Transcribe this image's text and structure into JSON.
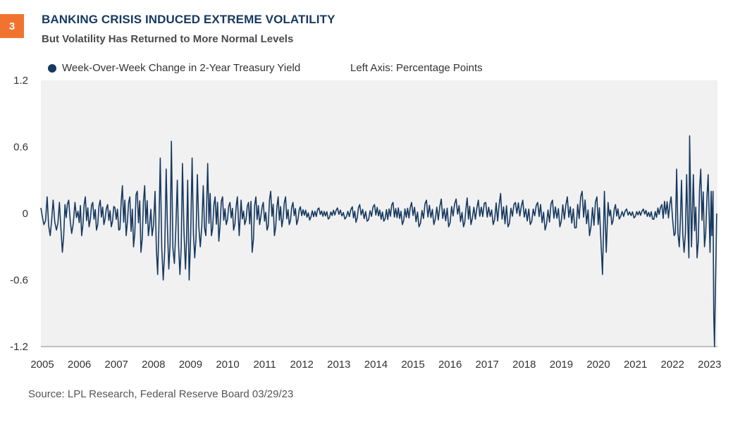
{
  "figure": {
    "number": "3",
    "title": "BANKING CRISIS INDUCED EXTREME VOLATILITY",
    "subtitle": "But Volatility Has Returned to More Normal Levels",
    "source": "Source: LPL Research, Federal Reserve Board  03/29/23"
  },
  "colors": {
    "accent": "#f0742f",
    "series": "#17395f",
    "plot_bg": "#f1f1f2"
  },
  "chart_data": {
    "type": "line",
    "title": "BANKING CRISIS INDUCED EXTREME VOLATILITY",
    "subtitle": "But Volatility Has Returned to More Normal Levels",
    "ylabel": "Left Axis: Percentage Points",
    "xlabel": "",
    "ylim": [
      -1.2,
      1.2
    ],
    "yticks": [
      1.2,
      0.6,
      0,
      -0.6,
      -1.2
    ],
    "ytick_labels": [
      "1.2",
      "0.6",
      "0",
      "-0.6",
      "-1.2"
    ],
    "xlim": [
      2005.0,
      2023.25
    ],
    "xticks": [
      2005,
      2006,
      2007,
      2008,
      2009,
      2010,
      2011,
      2012,
      2013,
      2014,
      2015,
      2016,
      2017,
      2018,
      2019,
      2020,
      2021,
      2022,
      2023
    ],
    "xtick_labels": [
      "2005",
      "2006",
      "2007",
      "2008",
      "2009",
      "2010",
      "2011",
      "2012",
      "2013",
      "2014",
      "2015",
      "2016",
      "2017",
      "2018",
      "2019",
      "2020",
      "2021",
      "2022",
      "2023"
    ],
    "grid": false,
    "legend_position": "top-left",
    "series": [
      {
        "name": "Week-Over-Week Change in 2-Year Treasury Yield",
        "x": [
          2005.0,
          2005.08,
          2005.17,
          2005.25,
          2005.33,
          2005.42,
          2005.5,
          2005.58,
          2005.65,
          2005.75,
          2005.83,
          2005.92,
          2006.0,
          2006.1,
          2006.2,
          2006.3,
          2006.4,
          2006.5,
          2006.6,
          2006.7,
          2006.8,
          2006.9,
          2007.0,
          2007.1,
          2007.2,
          2007.3,
          2007.4,
          2007.5,
          2007.6,
          2007.7,
          2007.8,
          2007.9,
          2008.0,
          2008.08,
          2008.15,
          2008.22,
          2008.3,
          2008.38,
          2008.45,
          2008.52,
          2008.6,
          2008.68,
          2008.75,
          2008.82,
          2008.9,
          2008.96,
          2009.0,
          2009.08,
          2009.15,
          2009.22,
          2009.3,
          2009.38,
          2009.45,
          2009.5,
          2009.6,
          2009.7,
          2009.8,
          2009.9,
          2010.0,
          2010.1,
          2010.2,
          2010.3,
          2010.35,
          2010.4,
          2010.5,
          2010.6,
          2010.7,
          2010.8,
          2010.9,
          2011.0,
          2011.1,
          2011.2,
          2011.3,
          2011.4,
          2011.5,
          2011.6,
          2011.7,
          2011.8,
          2011.9,
          2012.0,
          2012.25,
          2012.5,
          2012.75,
          2013.0,
          2013.2,
          2013.4,
          2013.5,
          2013.6,
          2013.8,
          2014.0,
          2014.25,
          2014.5,
          2014.75,
          2015.0,
          2015.2,
          2015.4,
          2015.6,
          2015.8,
          2016.0,
          2016.2,
          2016.4,
          2016.5,
          2016.6,
          2016.8,
          2017.0,
          2017.2,
          2017.4,
          2017.6,
          2017.8,
          2018.0,
          2018.2,
          2018.4,
          2018.6,
          2018.8,
          2019.0,
          2019.2,
          2019.4,
          2019.6,
          2019.8,
          2020.0,
          2020.1,
          2020.15,
          2020.2,
          2020.25,
          2020.3,
          2020.4,
          2020.5,
          2020.6,
          2020.8,
          2021.0,
          2021.25,
          2021.5,
          2021.75,
          2022.0,
          2022.08,
          2022.15,
          2022.22,
          2022.28,
          2022.35,
          2022.42,
          2022.48,
          2022.5,
          2022.55,
          2022.6,
          2022.7,
          2022.8,
          2022.9,
          2023.0,
          2023.05,
          2023.08,
          2023.1,
          2023.13,
          2023.15,
          2023.17,
          2023.19,
          2023.21,
          2023.23
        ],
        "values": [
          0.05,
          -0.1,
          0.15,
          -0.2,
          0.12,
          -0.15,
          0.1,
          -0.35,
          0.08,
          0.12,
          -0.18,
          0.1,
          0.02,
          -0.2,
          0.15,
          -0.12,
          0.1,
          -0.15,
          0.12,
          -0.1,
          0.08,
          -0.12,
          0.05,
          -0.15,
          0.25,
          -0.2,
          0.15,
          -0.3,
          0.2,
          -0.35,
          0.25,
          -0.2,
          -0.2,
          0.2,
          -0.55,
          0.5,
          -0.6,
          0.4,
          -0.5,
          0.65,
          -0.45,
          0.3,
          -0.55,
          0.45,
          -0.5,
          0.3,
          -0.6,
          0.5,
          -0.4,
          0.35,
          -0.3,
          0.25,
          -0.2,
          0.45,
          -0.2,
          0.15,
          -0.25,
          0.15,
          -0.1,
          0.1,
          -0.15,
          0.15,
          -0.2,
          0.12,
          -0.1,
          0.1,
          -0.35,
          0.15,
          -0.1,
          0.1,
          -0.15,
          0.2,
          -0.2,
          0.15,
          -0.12,
          0.15,
          -0.1,
          0.1,
          -0.1,
          0.06,
          -0.06,
          0.05,
          -0.05,
          0.05,
          -0.05,
          0.06,
          -0.08,
          0.08,
          -0.07,
          0.08,
          -0.07,
          0.1,
          -0.1,
          0.1,
          -0.12,
          0.12,
          -0.1,
          0.13,
          -0.12,
          0.13,
          -0.12,
          0.14,
          -0.1,
          0.12,
          0.1,
          -0.1,
          0.18,
          -0.12,
          0.1,
          0.12,
          -0.1,
          0.1,
          -0.15,
          0.12,
          -0.12,
          0.15,
          -0.13,
          0.2,
          -0.2,
          0.15,
          -0.2,
          -0.55,
          0.2,
          -0.35,
          0.1,
          -0.1,
          0.08,
          -0.05,
          0.04,
          -0.04,
          0.04,
          -0.05,
          0.08,
          0.15,
          -0.2,
          0.4,
          -0.3,
          0.3,
          -0.35,
          0.35,
          -0.4,
          0.7,
          -0.3,
          0.35,
          -0.4,
          0.4,
          -0.3,
          0.35,
          -0.35,
          0.2,
          -0.2,
          0.2,
          -0.9,
          -1.2,
          -0.8,
          -0.4,
          0.0
        ]
      }
    ]
  }
}
